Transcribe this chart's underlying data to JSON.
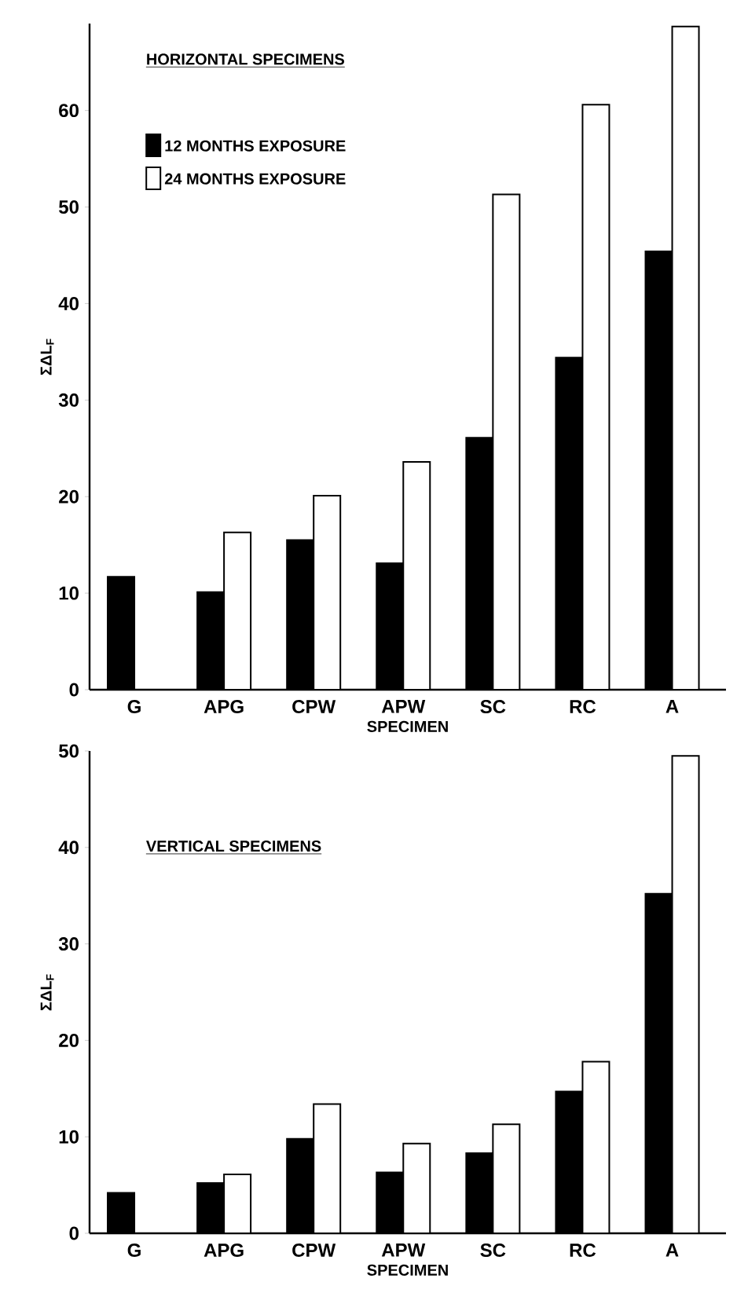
{
  "chart_data": [
    {
      "type": "bar",
      "title": "HORIZONTAL SPECIMENS",
      "xlabel": "SPECIMEN",
      "ylabel": "ΣΔL$_{F}$",
      "categories": [
        "G",
        "APG",
        "CPW",
        "APW",
        "SC",
        "RC",
        "A"
      ],
      "ylim": [
        0,
        69
      ],
      "yticks": [
        0,
        10,
        20,
        30,
        40,
        50,
        60
      ],
      "legend": "top left",
      "series": [
        {
          "name": "12 MONTHS EXPOSURE",
          "color": "#000000",
          "values": [
            11.7,
            10.1,
            15.5,
            13.1,
            26.1,
            34.4,
            45.4
          ]
        },
        {
          "name": "24 MONTHS EXPOSURE",
          "color": "#ffffff",
          "values": [
            null,
            16.3,
            20.1,
            23.6,
            51.3,
            60.6,
            68.7
          ]
        }
      ]
    },
    {
      "type": "bar",
      "title": "VERTICAL SPECIMENS",
      "xlabel": "SPECIMEN",
      "ylabel": "ΣΔL$_{F}$",
      "categories": [
        "G",
        "APG",
        "CPW",
        "APW",
        "SC",
        "RC",
        "A"
      ],
      "ylim": [
        0,
        50
      ],
      "yticks": [
        0,
        10,
        20,
        30,
        40,
        50
      ],
      "series": [
        {
          "color": "#000000",
          "values": [
            4.2,
            5.2,
            9.8,
            6.3,
            8.3,
            14.7,
            35.2
          ]
        },
        {
          "color": "#ffffff",
          "values": [
            null,
            6.1,
            13.4,
            9.3,
            11.3,
            17.8,
            49.5
          ]
        }
      ]
    }
  ]
}
